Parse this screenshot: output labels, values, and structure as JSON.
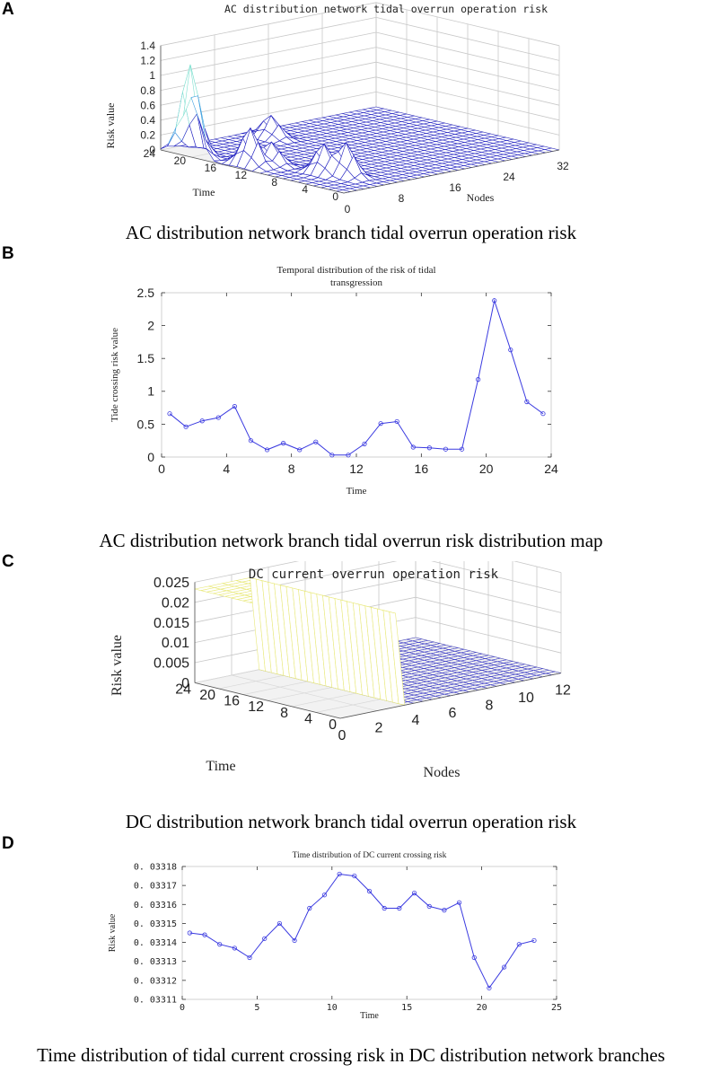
{
  "panels": [
    {
      "letter": "A",
      "caption": "AC distribution network branch tidal overrun operation risk"
    },
    {
      "letter": "B",
      "caption": "AC distribution network branch tidal overrun risk distribution map"
    },
    {
      "letter": "C",
      "caption": "DC distribution network branch tidal overrun operation risk"
    },
    {
      "letter": "D",
      "caption": "Time distribution of tidal current crossing risk in DC distribution network branches"
    }
  ],
  "chart_data": [
    {
      "type": "surface",
      "title": "AC distribution network tidal overrun operation risk",
      "zlabel": "Risk value",
      "ylabel": "Time",
      "xlabel": "Nodes",
      "zlim": [
        0,
        1.4
      ],
      "z_ticks": [
        "0",
        "0.2",
        "0.4",
        "0.6",
        "0.8",
        "1",
        "1.2",
        "1.4"
      ],
      "time_ticks": [
        "24",
        "20",
        "16",
        "12",
        "8",
        "4",
        "0"
      ],
      "node_ticks": [
        "0",
        "8",
        "16",
        "24",
        "32"
      ],
      "colormap": [
        "#2020c0",
        "#40a0e0",
        "#80e0d0",
        "#e0f060"
      ],
      "peaks": [
        {
          "node": 1,
          "time": 21,
          "value": 1.2
        },
        {
          "node": 0,
          "time": 20,
          "value": 0.8
        },
        {
          "node": 2,
          "time": 14,
          "value": 0.5
        },
        {
          "node": 4,
          "time": 13,
          "value": 0.3
        },
        {
          "node": 5,
          "time": 7,
          "value": 0.4
        },
        {
          "node": 6,
          "time": 5,
          "value": 0.45
        },
        {
          "node": 13,
          "time": 21,
          "value": 0.3
        }
      ]
    },
    {
      "type": "line",
      "title": "Temporal distribution of the risk of tidal transgression",
      "xlabel": "Time",
      "ylabel": "Tide crossing risk value",
      "xlim": [
        0,
        24
      ],
      "ylim": [
        0,
        2.5
      ],
      "x_ticks": [
        "0",
        "4",
        "8",
        "12",
        "16",
        "20",
        "24"
      ],
      "y_ticks": [
        "0",
        "0.5",
        "1",
        "1.5",
        "2",
        "2.5"
      ],
      "line_color": "#3a3ae0",
      "x": [
        0.5,
        1.5,
        2.5,
        3.5,
        4.5,
        5.5,
        6.5,
        7.5,
        8.5,
        9.5,
        10.5,
        11.5,
        12.5,
        13.5,
        14.5,
        15.5,
        16.5,
        17.5,
        18.5,
        19.5,
        20.5,
        21.5,
        22.5,
        23.5
      ],
      "y": [
        0.66,
        0.46,
        0.55,
        0.6,
        0.77,
        0.25,
        0.11,
        0.21,
        0.11,
        0.23,
        0.03,
        0.03,
        0.2,
        0.51,
        0.54,
        0.15,
        0.14,
        0.12,
        0.12,
        1.18,
        2.38,
        1.63,
        0.84,
        0.66
      ]
    },
    {
      "type": "surface",
      "title": "DC current overrun operation risk",
      "zlabel": "Risk value",
      "ylabel": "Time",
      "xlabel": "Nodes",
      "zlim": [
        0,
        0.025
      ],
      "z_ticks": [
        "0",
        "0.005",
        "0.01",
        "0.015",
        "0.02",
        "0.025"
      ],
      "time_ticks": [
        "24",
        "20",
        "16",
        "12",
        "8",
        "4",
        "0"
      ],
      "node_ticks": [
        "0",
        "2",
        "4",
        "6",
        "8",
        "10",
        "12"
      ],
      "plateau": {
        "nodes": [
          0,
          3
        ],
        "value": 0.0233,
        "color": "#e8e878"
      }
    },
    {
      "type": "line",
      "title": "Time distribution of DC current crossing risk",
      "xlabel": "Time",
      "ylabel": "Risk value",
      "xlim": [
        0,
        25
      ],
      "ylim": [
        0.03311,
        0.03318
      ],
      "x_ticks": [
        "0",
        "5",
        "10",
        "15",
        "20",
        "25"
      ],
      "y_ticks": [
        "0. 03311",
        "0. 03312",
        "0. 03313",
        "0. 03314",
        "0. 03315",
        "0. 03316",
        "0. 03317",
        "0. 03318"
      ],
      "line_color": "#3a3ae0",
      "x": [
        0.5,
        1.5,
        2.5,
        3.5,
        4.5,
        5.5,
        6.5,
        7.5,
        8.5,
        9.5,
        10.5,
        11.5,
        12.5,
        13.5,
        14.5,
        15.5,
        16.5,
        17.5,
        18.5,
        19.5,
        20.5,
        21.5,
        22.5,
        23.5
      ],
      "y": [
        0.033145,
        0.033144,
        0.033139,
        0.033137,
        0.033132,
        0.033142,
        0.03315,
        0.033141,
        0.033158,
        0.033165,
        0.033176,
        0.033175,
        0.033167,
        0.033158,
        0.033158,
        0.033166,
        0.033159,
        0.033157,
        0.033161,
        0.033132,
        0.033116,
        0.033127,
        0.033139,
        0.033141
      ]
    }
  ]
}
